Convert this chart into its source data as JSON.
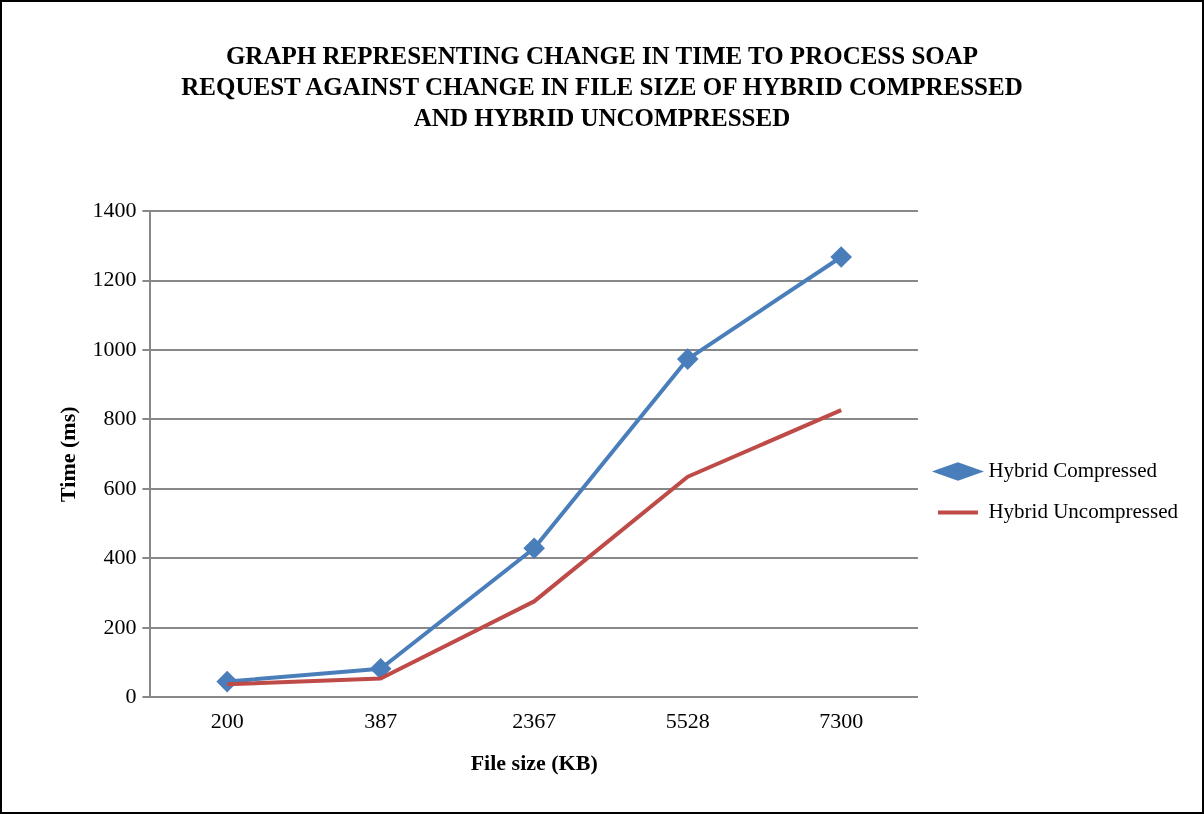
{
  "chart_data": {
    "type": "line",
    "title": "GRAPH REPRESENTING CHANGE IN TIME TO PROCESS SOAP REQUEST AGAINST CHANGE IN FILE SIZE OF HYBRID COMPRESSED AND HYBRID UNCOMPRESSED",
    "xlabel": "File size (KB)",
    "ylabel": "Time (ms)",
    "categories": [
      "200",
      "387",
      "2367",
      "5528",
      "7300"
    ],
    "series": [
      {
        "name": "Hybrid Compressed",
        "color": "#4a7ebb",
        "values": [
          45,
          82,
          429,
          974,
          1268
        ],
        "marker": "diamond"
      },
      {
        "name": "Hybrid Uncompressed",
        "color": "#be4b48",
        "values": [
          37,
          54,
          276,
          635,
          827
        ],
        "marker": "none"
      }
    ],
    "ylim": [
      0,
      1400
    ],
    "yticks": [
      0,
      200,
      400,
      600,
      800,
      1000,
      1200,
      1400
    ],
    "grid": "y",
    "legend": "right"
  }
}
